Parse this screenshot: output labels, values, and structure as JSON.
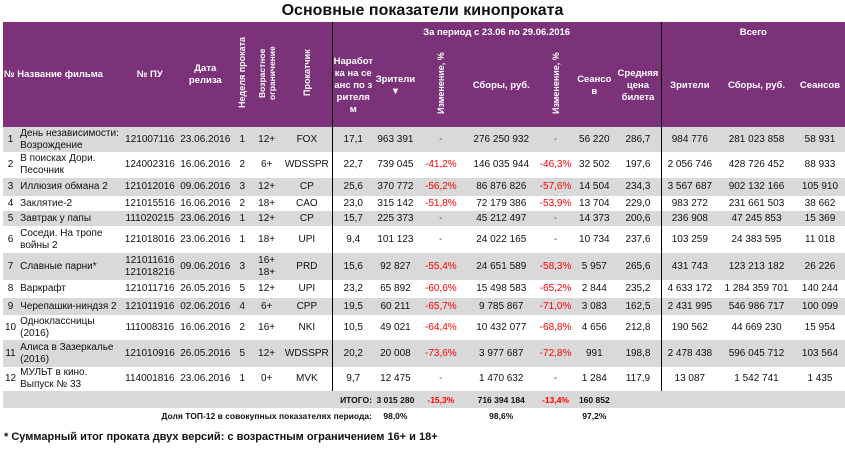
{
  "title": "Основные показатели кинопроката",
  "header": {
    "num_name": "№ Название фильма",
    "pu": "№ ПУ",
    "release": "Дата релиза",
    "week": "Неделя проката",
    "age": "Возрастное ограничение",
    "distributor": "Прокатчик",
    "period": "За период с 23.06 по 29.06.2016",
    "per_viewer": "Наработка на сеанс по зрителям",
    "viewers": "Зрители ▼",
    "change1": "Изменение, %",
    "gross": "Сборы, руб.",
    "change2": "Изменение, %",
    "sessions": "Сеансов",
    "avg_price": "Средняя цена билета",
    "total": "Всего",
    "total_viewers": "Зрители",
    "total_gross": "Сборы, руб.",
    "total_sessions": "Сеансов"
  },
  "rows": [
    {
      "n": "1",
      "name": "День независимости: Возрождение",
      "pu": "121007116",
      "date": "23.06.2016",
      "week": "1",
      "age": "12+",
      "dist": "FOX",
      "per": "17,1",
      "viewers": "963 391",
      "ch1": "-",
      "gross": "276 250 932",
      "ch2": "-",
      "sessions": "56 220",
      "price": "286,7",
      "tv": "984 776",
      "tg": "281 023 858",
      "ts": "58 931"
    },
    {
      "n": "2",
      "name": "В поисках Дори. Песочник",
      "pu": "124002316",
      "date": "16.06.2016",
      "week": "2",
      "age": "6+",
      "dist": "WDSSPR",
      "per": "22,7",
      "viewers": "739 045",
      "ch1": "-41,2%",
      "gross": "146 035 944",
      "ch2": "-46,3%",
      "sessions": "32 502",
      "price": "197,6",
      "tv": "2 056 746",
      "tg": "428 726 452",
      "ts": "88 933"
    },
    {
      "n": "3",
      "name": "Иллюзия обмана 2",
      "pu": "121012016",
      "date": "09.06.2016",
      "week": "3",
      "age": "12+",
      "dist": "CP",
      "per": "25,6",
      "viewers": "370 772",
      "ch1": "-56,2%",
      "gross": "86 876 826",
      "ch2": "-57,6%",
      "sessions": "14 504",
      "price": "234,3",
      "tv": "3 567 687",
      "tg": "902 132 166",
      "ts": "105 910"
    },
    {
      "n": "4",
      "name": "Заклятие-2",
      "pu": "121015516",
      "date": "16.06.2016",
      "week": "2",
      "age": "18+",
      "dist": "CAO",
      "per": "23,0",
      "viewers": "315 142",
      "ch1": "-51,8%",
      "gross": "72 179 386",
      "ch2": "-53,9%",
      "sessions": "13 704",
      "price": "229,0",
      "tv": "983 272",
      "tg": "231 661 503",
      "ts": "38 662"
    },
    {
      "n": "5",
      "name": "Завтрак у папы",
      "pu": "111020215",
      "date": "23.06.2016",
      "week": "1",
      "age": "12+",
      "dist": "CP",
      "per": "15,7",
      "viewers": "225 373",
      "ch1": "-",
      "gross": "45 212 497",
      "ch2": "-",
      "sessions": "14 373",
      "price": "200,6",
      "tv": "236 908",
      "tg": "47 245 853",
      "ts": "15 369"
    },
    {
      "n": "6",
      "name": "Соседи. На тропе войны 2",
      "pu": "121018016",
      "date": "23.06.2016",
      "week": "1",
      "age": "18+",
      "dist": "UPI",
      "per": "9,4",
      "viewers": "101 123",
      "ch1": "-",
      "gross": "24 022 165",
      "ch2": "-",
      "sessions": "10 734",
      "price": "237,6",
      "tv": "103 259",
      "tg": "24 383 595",
      "ts": "11 018"
    },
    {
      "n": "7",
      "name": "Славные парни*",
      "pu": "121011616 121018216",
      "date": "09.06.2016",
      "week": "3",
      "age": "16+ 18+",
      "dist": "PRD",
      "per": "15,6",
      "viewers": "92 827",
      "ch1": "-55,4%",
      "gross": "24 651 589",
      "ch2": "-58,3%",
      "sessions": "5 957",
      "price": "265,6",
      "tv": "431 743",
      "tg": "123 213 182",
      "ts": "26 226"
    },
    {
      "n": "8",
      "name": "Варкрафт",
      "pu": "121011716",
      "date": "26.05.2016",
      "week": "5",
      "age": "12+",
      "dist": "UPI",
      "per": "23,2",
      "viewers": "65 892",
      "ch1": "-60,6%",
      "gross": "15 498 583",
      "ch2": "-65,2%",
      "sessions": "2 844",
      "price": "235,2",
      "tv": "4 633 172",
      "tg": "1 284 359 701",
      "ts": "140 244"
    },
    {
      "n": "9",
      "name": "Черепашки-ниндзя 2",
      "pu": "121011916",
      "date": "02.06.2016",
      "week": "4",
      "age": "6+",
      "dist": "CPP",
      "per": "19,5",
      "viewers": "60 211",
      "ch1": "-65,7%",
      "gross": "9 785 867",
      "ch2": "-71,0%",
      "sessions": "3 083",
      "price": "162,5",
      "tv": "2 431 995",
      "tg": "546 986 717",
      "ts": "100 099"
    },
    {
      "n": "10",
      "name": "Одноклассницы (2016)",
      "pu": "111008316",
      "date": "16.06.2016",
      "week": "2",
      "age": "16+",
      "dist": "NKI",
      "per": "10,5",
      "viewers": "49 021",
      "ch1": "-64,4%",
      "gross": "10 432 077",
      "ch2": "-68,8%",
      "sessions": "4 656",
      "price": "212,8",
      "tv": "190 562",
      "tg": "44 669 230",
      "ts": "15 954"
    },
    {
      "n": "11",
      "name": "Алиса в Зазеркалье (2016)",
      "pu": "121010916",
      "date": "26.05.2016",
      "week": "5",
      "age": "12+",
      "dist": "WDSSPR",
      "per": "20,2",
      "viewers": "20 008",
      "ch1": "-73,6%",
      "gross": "3 977 687",
      "ch2": "-72,8%",
      "sessions": "991",
      "price": "198,8",
      "tv": "2 478 438",
      "tg": "596 045 712",
      "ts": "103 564"
    },
    {
      "n": "12",
      "name": "МУЛЬТ в кино. Выпуск № 33",
      "pu": "114001816",
      "date": "23.06.2016",
      "week": "1",
      "age": "0+",
      "dist": "MVK",
      "per": "9,7",
      "viewers": "12 475",
      "ch1": "-",
      "gross": "1 470 632",
      "ch2": "-",
      "sessions": "1 284",
      "price": "117,9",
      "tv": "13 087",
      "tg": "1 542 741",
      "ts": "1 435"
    }
  ],
  "total": {
    "label": "ИТОГО:",
    "viewers": "3 015 280",
    "ch1": "-15,3%",
    "gross": "716 394 184",
    "ch2": "-13,4%",
    "sessions": "160 852"
  },
  "share": {
    "label": "Доля ТОП-12 в совокупных показателях периода:",
    "viewers": "98,0%",
    "gross": "98,6%",
    "sessions": "97,2%"
  },
  "footnote": "* Суммарный итог проката двух версий: с возрастным ограничением 16+ и 18+",
  "colors": {
    "header": "#7c3279",
    "negative": "#ff0000",
    "stripe": "#d9d9d9"
  }
}
